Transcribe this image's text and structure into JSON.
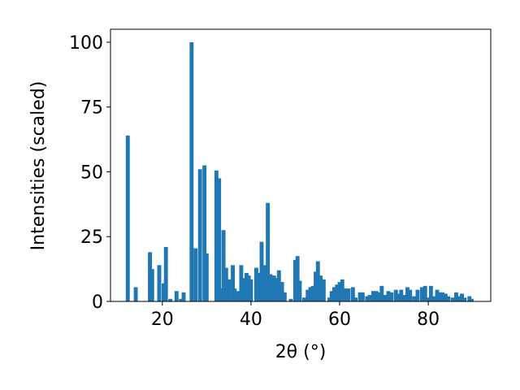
{
  "chart_data": {
    "type": "bar",
    "x_label": "2θ (°)",
    "y_label": "Intensities (scaled)",
    "color": "#1f77b4",
    "x": [
      12.2,
      14,
      17.2,
      17.7,
      19.3,
      20.3,
      20.8,
      21.8,
      23.2,
      24.2,
      24.8,
      26.6,
      27.5,
      28.5,
      29.5,
      30,
      32.2,
      32.8,
      33.3,
      33.8,
      34.4,
      35,
      35.9,
      36.3,
      37.1,
      37.8,
      38.3,
      39,
      39.5,
      40,
      41.2,
      41.7,
      42.4,
      43,
      43.8,
      44.4,
      45.2,
      45.8,
      46.3,
      47,
      47.6,
      49,
      50,
      50.5,
      51,
      52,
      52.8,
      53.4,
      54,
      54.6,
      55.1,
      55.7,
      56.4,
      57.7,
      58.2,
      58.8,
      59.4,
      60,
      60.6,
      61.3,
      62,
      63,
      63.6,
      64.6,
      65.2,
      66.2,
      66.8,
      67.6,
      68.3,
      68.9,
      69.5,
      70.2,
      71,
      71.7,
      72.7,
      73.2,
      73.9,
      74.6,
      75.3,
      75.9,
      76.8,
      77.6,
      78.6,
      79.3,
      80,
      80.6,
      81.4,
      82,
      82.6,
      83.2,
      83.9,
      84.5,
      85.5,
      86.3,
      87,
      87.6,
      88.2,
      89.3,
      89.8
    ],
    "values": [
      64,
      5.5,
      19,
      12.5,
      14,
      7,
      21,
      1,
      4,
      1,
      3.5,
      100,
      20.5,
      51,
      52.5,
      18.5,
      50.5,
      47.5,
      5,
      27.5,
      13,
      8.5,
      14,
      5,
      4,
      14,
      9,
      11,
      10,
      8.5,
      13,
      11,
      23,
      14,
      38,
      10.5,
      10,
      9,
      12,
      7.5,
      3.5,
      1,
      16,
      17.5,
      8,
      1.5,
      4.5,
      5.5,
      6,
      11.5,
      15.5,
      10,
      8.5,
      1.5,
      4,
      5.5,
      6.5,
      7.5,
      8.5,
      5,
      5,
      5.5,
      1.5,
      3.5,
      3.5,
      2,
      2.5,
      4,
      4,
      3.5,
      6,
      2.5,
      4,
      3.5,
      4.5,
      3,
      4.5,
      2.5,
      5.5,
      4.5,
      2,
      4.5,
      5.5,
      6,
      1.5,
      6,
      2,
      4.5,
      3.5,
      3.5,
      3,
      2,
      1.5,
      3.5,
      2,
      3,
      1.5,
      2,
      1
    ],
    "xlim": [
      8.3,
      94.1
    ],
    "ylim": [
      0,
      105
    ],
    "xticks": [
      20,
      40,
      60,
      80
    ],
    "yticks": [
      0,
      25,
      50,
      75,
      100
    ]
  }
}
